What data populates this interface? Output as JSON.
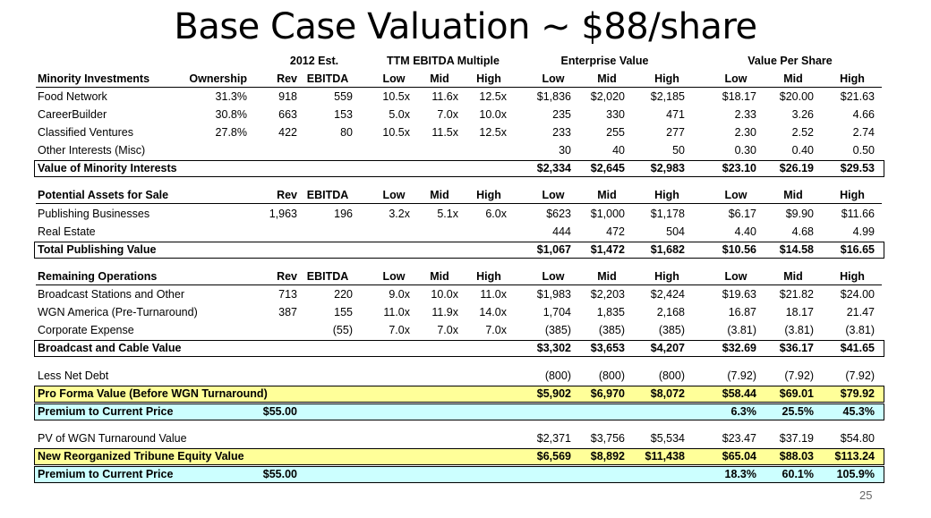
{
  "title": "Base Case Valuation ~ $88/share",
  "page_number": "25",
  "super_headers": {
    "est": "2012 Est.",
    "multiple": "TTM EBITDA Multiple",
    "ev": "Enterprise Value",
    "vps": "Value Per Share"
  },
  "sections": [
    {
      "header": [
        "Minority Investments",
        "Ownership",
        "Rev",
        "EBITDA",
        "Low",
        "Mid",
        "High",
        "Low",
        "Mid",
        "High",
        "Low",
        "Mid",
        "High"
      ],
      "rows": [
        [
          "Food Network",
          "31.3%",
          "918",
          "559",
          "10.5x",
          "11.6x",
          "12.5x",
          "$1,836",
          "$2,020",
          "$2,185",
          "$18.17",
          "$20.00",
          "$21.63"
        ],
        [
          "CareerBuilder",
          "30.8%",
          "663",
          "153",
          "5.0x",
          "7.0x",
          "10.0x",
          "235",
          "330",
          "471",
          "2.33",
          "3.26",
          "4.66"
        ],
        [
          "Classified Ventures",
          "27.8%",
          "422",
          "80",
          "10.5x",
          "11.5x",
          "12.5x",
          "233",
          "255",
          "277",
          "2.30",
          "2.52",
          "2.74"
        ],
        [
          "Other Interests (Misc)",
          "",
          "",
          "",
          "",
          "",
          "",
          "30",
          "40",
          "50",
          "0.30",
          "0.40",
          "0.50"
        ]
      ],
      "total": [
        "Value of Minority Interests",
        "",
        "",
        "",
        "",
        "",
        "",
        "$2,334",
        "$2,645",
        "$2,983",
        "$23.10",
        "$26.19",
        "$29.53"
      ]
    },
    {
      "header": [
        "Potential Assets for Sale",
        "",
        "Rev",
        "EBITDA",
        "Low",
        "Mid",
        "High",
        "Low",
        "Mid",
        "High",
        "Low",
        "Mid",
        "High"
      ],
      "rows": [
        [
          "Publishing Businesses",
          "",
          "1,963",
          "196",
          "3.2x",
          "5.1x",
          "6.0x",
          "$623",
          "$1,000",
          "$1,178",
          "$6.17",
          "$9.90",
          "$11.66"
        ],
        [
          "Real Estate",
          "",
          "",
          "",
          "",
          "",
          "",
          "444",
          "472",
          "504",
          "4.40",
          "4.68",
          "4.99"
        ]
      ],
      "total": [
        "Total Publishing Value",
        "",
        "",
        "",
        "",
        "",
        "",
        "$1,067",
        "$1,472",
        "$1,682",
        "$10.56",
        "$14.58",
        "$16.65"
      ]
    },
    {
      "header": [
        "Remaining Operations",
        "",
        "Rev",
        "EBITDA",
        "Low",
        "Mid",
        "High",
        "Low",
        "Mid",
        "High",
        "Low",
        "Mid",
        "High"
      ],
      "rows": [
        [
          "Broadcast Stations and Other",
          "",
          "713",
          "220",
          "9.0x",
          "10.0x",
          "11.0x",
          "$1,983",
          "$2,203",
          "$2,424",
          "$19.63",
          "$21.82",
          "$24.00"
        ],
        [
          "WGN America (Pre-Turnaround)",
          "",
          "387",
          "155",
          "11.0x",
          "11.9x",
          "14.0x",
          "1,704",
          "1,835",
          "2,168",
          "16.87",
          "18.17",
          "21.47"
        ],
        [
          "Corporate Expense",
          "",
          "",
          "(55)",
          "7.0x",
          "7.0x",
          "7.0x",
          "(385)",
          "(385)",
          "(385)",
          "(3.81)",
          "(3.81)",
          "(3.81)"
        ]
      ],
      "total": [
        "Broadcast and Cable Value",
        "",
        "",
        "",
        "",
        "",
        "",
        "$3,302",
        "$3,653",
        "$4,207",
        "$32.69",
        "$36.17",
        "$41.65"
      ]
    }
  ],
  "net_debt": [
    "Less Net Debt",
    "",
    "",
    "",
    "",
    "",
    "",
    "(800)",
    "(800)",
    "(800)",
    "(7.92)",
    "(7.92)",
    "(7.92)"
  ],
  "pro_forma": [
    "Pro Forma Value (Before WGN Turnaround)",
    "",
    "",
    "",
    "",
    "",
    "",
    "$5,902",
    "$6,970",
    "$8,072",
    "$58.44",
    "$69.01",
    "$79.92"
  ],
  "premium1": [
    "Premium to Current Price",
    "",
    "$55.00",
    "",
    "",
    "",
    "",
    "",
    "",
    "",
    "6.3%",
    "25.5%",
    "45.3%"
  ],
  "pv_wgn": [
    "PV of WGN Turnaround Value",
    "",
    "",
    "",
    "",
    "",
    "",
    "$2,371",
    "$3,756",
    "$5,534",
    "$23.47",
    "$37.19",
    "$54.80"
  ],
  "new_equity": [
    "New Reorganized Tribune Equity Value",
    "",
    "",
    "",
    "",
    "",
    "",
    "$6,569",
    "$8,892",
    "$11,438",
    "$65.04",
    "$88.03",
    "$113.24"
  ],
  "premium2": [
    "Premium to Current Price",
    "",
    "$55.00",
    "",
    "",
    "",
    "",
    "",
    "",
    "",
    "18.3%",
    "60.1%",
    "105.9%"
  ]
}
